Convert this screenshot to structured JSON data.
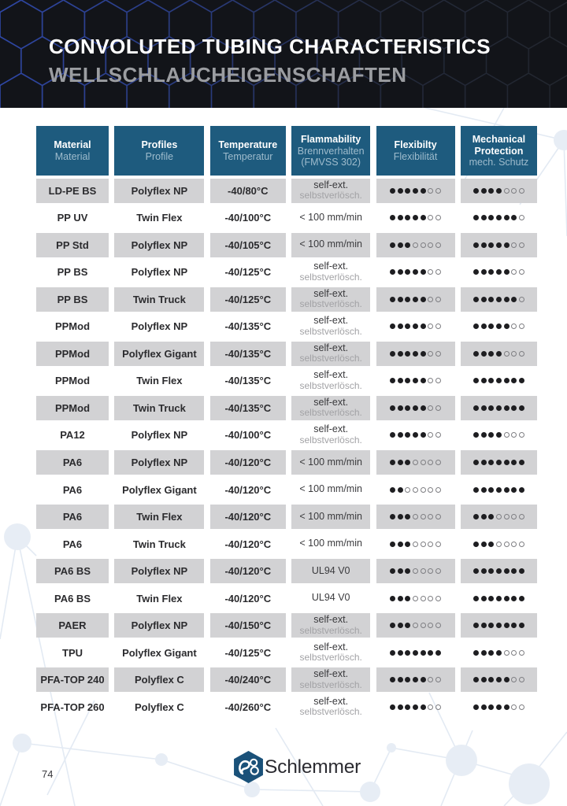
{
  "page": {
    "number": "74"
  },
  "header": {
    "title_en": "CONVOLUTED TUBING CHARACTERISTICS",
    "title_de": "WELLSCHLAUCHEIGENSCHAFTEN"
  },
  "table": {
    "columns": [
      {
        "en": "Material",
        "de": "Material"
      },
      {
        "en": "Profiles",
        "de": "Profile"
      },
      {
        "en": "Temperature",
        "de": "Temperatur"
      },
      {
        "en": "Flammability",
        "de": "Brennverhalten",
        "de2": "(FMVSS 302)"
      },
      {
        "en": "Flexibilty",
        "de": "Flexibilität"
      },
      {
        "en": "Mechanical Protection",
        "de": "mech. Schutz"
      }
    ],
    "rating_scale_max": 7,
    "rows": [
      {
        "material": "LD-PE BS",
        "profile": "Polyflex NP",
        "temperature": "-40/80°C",
        "flammability_en": "self-ext.",
        "flammability_de": "selbstverlösch.",
        "flexibility": 5,
        "mechanical": 4
      },
      {
        "material": "PP UV",
        "profile": "Twin Flex",
        "temperature": "-40/100°C",
        "flammability_en": "< 100 mm/min",
        "flammability_de": "",
        "flexibility": 5,
        "mechanical": 6
      },
      {
        "material": "PP Std",
        "profile": "Polyflex NP",
        "temperature": "-40/105°C",
        "flammability_en": "< 100 mm/min",
        "flammability_de": "",
        "flexibility": 3,
        "mechanical": 5
      },
      {
        "material": "PP BS",
        "profile": "Polyflex NP",
        "temperature": "-40/125°C",
        "flammability_en": "self-ext.",
        "flammability_de": "selbstverlösch.",
        "flexibility": 5,
        "mechanical": 5
      },
      {
        "material": "PP BS",
        "profile": "Twin Truck",
        "temperature": "-40/125°C",
        "flammability_en": "self-ext.",
        "flammability_de": "selbstverlösch.",
        "flexibility": 5,
        "mechanical": 6
      },
      {
        "material": "PPMod",
        "profile": "Polyflex NP",
        "temperature": "-40/135°C",
        "flammability_en": "self-ext.",
        "flammability_de": "selbstverlösch.",
        "flexibility": 5,
        "mechanical": 5
      },
      {
        "material": "PPMod",
        "profile": "Polyflex Gigant",
        "temperature": "-40/135°C",
        "flammability_en": "self-ext.",
        "flammability_de": "selbstverlösch.",
        "flexibility": 5,
        "mechanical": 4
      },
      {
        "material": "PPMod",
        "profile": "Twin Flex",
        "temperature": "-40/135°C",
        "flammability_en": "self-ext.",
        "flammability_de": "selbstverlösch.",
        "flexibility": 5,
        "mechanical": 7
      },
      {
        "material": "PPMod",
        "profile": "Twin Truck",
        "temperature": "-40/135°C",
        "flammability_en": "self-ext.",
        "flammability_de": "selbstverlösch.",
        "flexibility": 5,
        "mechanical": 7
      },
      {
        "material": "PA12",
        "profile": "Polyflex NP",
        "temperature": "-40/100°C",
        "flammability_en": "self-ext.",
        "flammability_de": "selbstverlösch.",
        "flexibility": 5,
        "mechanical": 4
      },
      {
        "material": "PA6",
        "profile": "Polyflex NP",
        "temperature": "-40/120°C",
        "flammability_en": "< 100 mm/min",
        "flammability_de": "",
        "flexibility": 3,
        "mechanical": 7
      },
      {
        "material": "PA6",
        "profile": "Polyflex Gigant",
        "temperature": "-40/120°C",
        "flammability_en": "< 100 mm/min",
        "flammability_de": "",
        "flexibility": 2,
        "mechanical": 7
      },
      {
        "material": "PA6",
        "profile": "Twin Flex",
        "temperature": "-40/120°C",
        "flammability_en": "< 100 mm/min",
        "flammability_de": "",
        "flexibility": 3,
        "mechanical": 3
      },
      {
        "material": "PA6",
        "profile": "Twin Truck",
        "temperature": "-40/120°C",
        "flammability_en": "< 100 mm/min",
        "flammability_de": "",
        "flexibility": 3,
        "mechanical": 3
      },
      {
        "material": "PA6 BS",
        "profile": "Polyflex NP",
        "temperature": "-40/120°C",
        "flammability_en": "UL94 V0",
        "flammability_de": "",
        "flexibility": 3,
        "mechanical": 7
      },
      {
        "material": "PA6 BS",
        "profile": "Twin Flex",
        "temperature": "-40/120°C",
        "flammability_en": "UL94 V0",
        "flammability_de": "",
        "flexibility": 3,
        "mechanical": 7
      },
      {
        "material": "PAER",
        "profile": "Polyflex NP",
        "temperature": "-40/150°C",
        "flammability_en": "self-ext.",
        "flammability_de": "selbstverlösch.",
        "flexibility": 3,
        "mechanical": 7
      },
      {
        "material": "TPU",
        "profile": "Polyflex Gigant",
        "temperature": "-40/125°C",
        "flammability_en": "self-ext.",
        "flammability_de": "selbstverlösch.",
        "flexibility": 7,
        "mechanical": 4
      },
      {
        "material": "PFA-TOP 240",
        "profile": "Polyflex C",
        "temperature": "-40/240°C",
        "flammability_en": "self-ext.",
        "flammability_de": "selbstverlösch.",
        "flexibility": 5,
        "mechanical": 5
      },
      {
        "material": "PFA-TOP 260",
        "profile": "Polyflex C",
        "temperature": "-40/260°C",
        "flammability_en": "self-ext.",
        "flammability_de": "selbstverlösch.",
        "flexibility": 5,
        "mechanical": 5
      }
    ]
  },
  "footer": {
    "logo_text": "Schlemmer"
  },
  "colors": {
    "header_bg": "#121419",
    "hex_outline_blue": "#2e47a8",
    "table_header_bg": "#1e5b7e",
    "table_header_subtitle": "#9fbccd",
    "row_alt_bg": "#d2d2d4",
    "dot_filled": "#1e1e21",
    "dot_empty_border": "#7e7e82",
    "logo_blue": "#1a5179"
  }
}
